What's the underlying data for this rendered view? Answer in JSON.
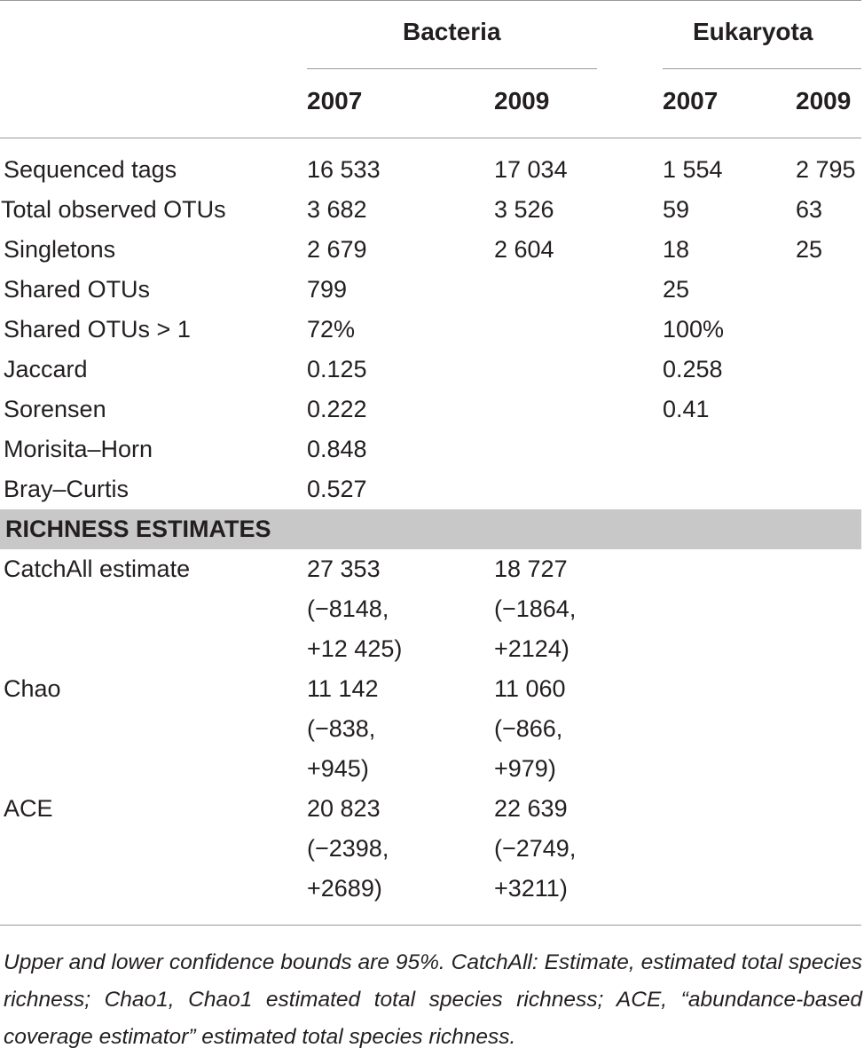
{
  "header": {
    "group_bacteria": "Bacteria",
    "group_eukaryota": "Eukaryota",
    "years": [
      "2007",
      "2009",
      "2007",
      "2009"
    ]
  },
  "rows": [
    {
      "label": "Sequenced tags",
      "b2007": "16 533",
      "b2009": "17 034",
      "e2007": "1 554",
      "e2009": "2 795"
    },
    {
      "label": "Total observed OTUs",
      "b2007": "3 682",
      "b2009": "3 526",
      "e2007": "59",
      "e2009": "63"
    },
    {
      "label": "Singletons",
      "b2007": "2 679",
      "b2009": "2 604",
      "e2007": "18",
      "e2009": "25"
    },
    {
      "label": "Shared OTUs",
      "b2007": "799",
      "b2009": "",
      "e2007": "25",
      "e2009": ""
    },
    {
      "label": "Shared OTUs > 1",
      "b2007": "72%",
      "b2009": "",
      "e2007": "100%",
      "e2009": ""
    },
    {
      "label": "Jaccard",
      "b2007": "0.125",
      "b2009": "",
      "e2007": "0.258",
      "e2009": ""
    },
    {
      "label": "Sorensen",
      "b2007": "0.222",
      "b2009": "",
      "e2007": "0.41",
      "e2009": ""
    },
    {
      "label": "Morisita–Horn",
      "b2007": "0.848",
      "b2009": "",
      "e2007": "",
      "e2009": ""
    },
    {
      "label": "Bray–Curtis",
      "b2007": "0.527",
      "b2009": "",
      "e2007": "",
      "e2009": ""
    }
  ],
  "section": {
    "title": "RICHNESS ESTIMATES"
  },
  "estimates": [
    {
      "label": "CatchAll estimate",
      "b2007": [
        "27 353",
        "(−8148,",
        "+12 425)"
      ],
      "b2009": [
        "18 727",
        "(−1864,",
        "+2124)"
      ]
    },
    {
      "label": "Chao",
      "b2007": [
        "11 142",
        "(−838,",
        "+945)"
      ],
      "b2009": [
        "11 060",
        "(−866,",
        "+979)"
      ]
    },
    {
      "label": "ACE",
      "b2007": [
        "20 823",
        "(−2398,",
        "+2689)"
      ],
      "b2009": [
        "22 639",
        "(−2749,",
        "+3211)"
      ]
    }
  ],
  "footnote": "Upper and lower confidence bounds are 95%. CatchAll: Estimate, estimated total species richness; Chao1, Chao1 estimated total species richness; ACE, “abundance-based coverage estimator” estimated total species richness."
}
